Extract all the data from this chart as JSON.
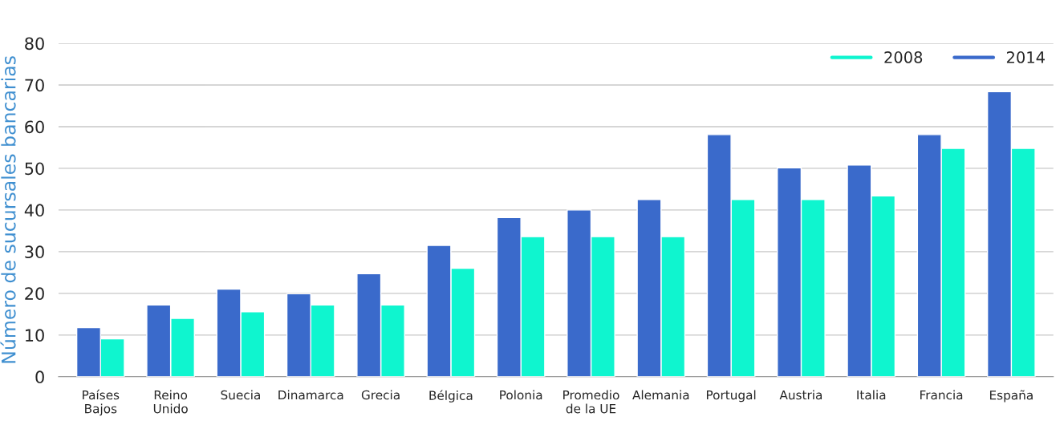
{
  "chart_data": {
    "type": "bar",
    "ylabel": "Número de sucursales bancarias",
    "categories": [
      "Países\nBajos",
      "Reino\nUnido",
      "Suecia",
      "Dinamarca",
      "Grecia",
      "Bélgica",
      "Polonia",
      "Promedio\nde la UE",
      "Alemania",
      "Portugal",
      "Austria",
      "Italia",
      "Francia",
      "España"
    ],
    "series": [
      {
        "name": "2008",
        "color": "#0ff5cf",
        "values": [
          9.1,
          14.0,
          15.6,
          17.2,
          17.2,
          26.0,
          33.6,
          33.6,
          33.6,
          42.5,
          42.5,
          43.4,
          54.8,
          54.8
        ]
      },
      {
        "name": "2014",
        "color": "#3a6acb",
        "values": [
          11.8,
          17.2,
          21.0,
          19.9,
          24.7,
          31.5,
          38.2,
          40.0,
          42.5,
          58.1,
          50.1,
          50.8,
          58.1,
          68.4
        ]
      }
    ],
    "ylim": [
      0,
      80
    ],
    "yticks": [
      0,
      10,
      20,
      30,
      40,
      50,
      60,
      70,
      80
    ],
    "grid": "y",
    "legend": "top right"
  }
}
